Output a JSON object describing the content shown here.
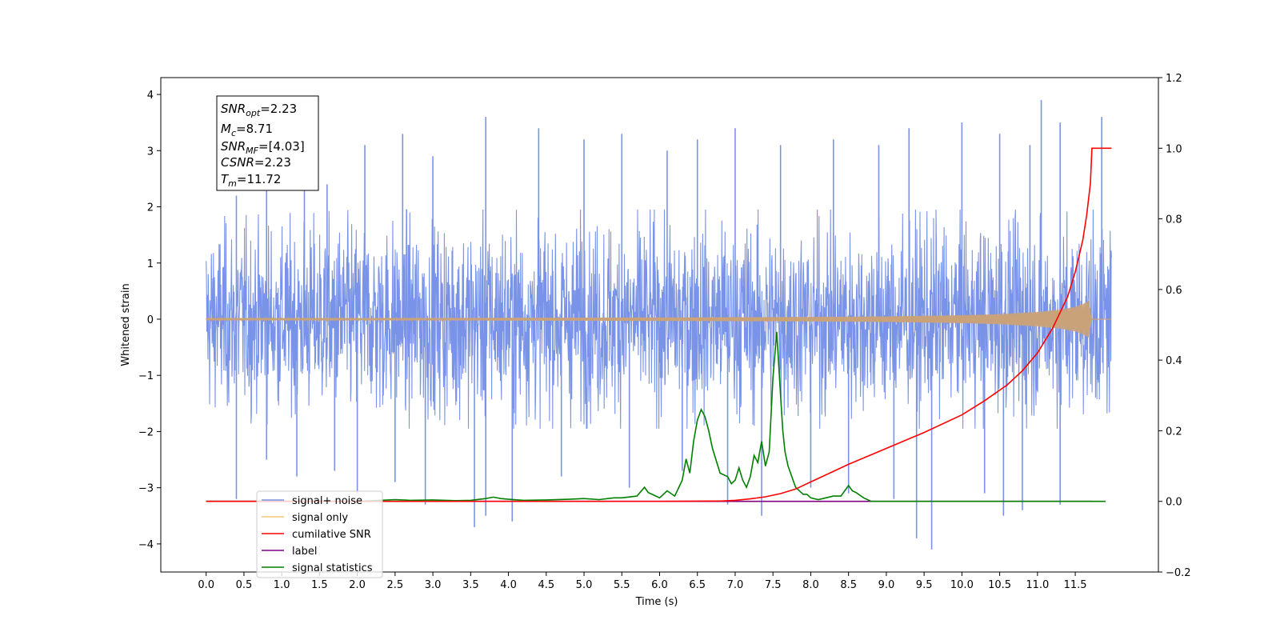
{
  "chart_data": {
    "type": "line",
    "xlabel": "Time (s)",
    "ylabel": "Whitened strain",
    "xlim": [
      -0.6,
      12.6
    ],
    "ylim": [
      -4.5,
      4.3
    ],
    "y2lim": [
      -0.2,
      1.2
    ],
    "x_ticks": [
      0.0,
      0.5,
      1.0,
      1.5,
      2.0,
      2.5,
      3.0,
      3.5,
      4.0,
      4.5,
      5.0,
      5.5,
      6.0,
      6.5,
      7.0,
      7.5,
      8.0,
      8.5,
      9.0,
      9.5,
      10.0,
      10.5,
      11.0,
      11.5
    ],
    "x_tick_labels": [
      "0.0",
      "0.5",
      "1.0",
      "1.5",
      "2.0",
      "2.5",
      "3.0",
      "3.5",
      "4.0",
      "4.5",
      "5.0",
      "5.5",
      "6.0",
      "6.5",
      "7.0",
      "7.5",
      "8.0",
      "8.5",
      "9.0",
      "9.5",
      "10.0",
      "10.5",
      "11.0",
      "11.5"
    ],
    "y_ticks": [
      -4,
      -3,
      -2,
      -1,
      0,
      1,
      2,
      3,
      4
    ],
    "y_tick_labels": [
      "−4",
      "−3",
      "−2",
      "−1",
      "0",
      "1",
      "2",
      "3",
      "4"
    ],
    "y2_ticks": [
      -0.2,
      0.0,
      0.2,
      0.4,
      0.6,
      0.8,
      1.0,
      1.2
    ],
    "y2_tick_labels": [
      "−0.2",
      "0.0",
      "0.2",
      "0.4",
      "0.6",
      "0.8",
      "1.0",
      "1.2"
    ],
    "legend_position": "lower-left",
    "grid": false,
    "info_box": {
      "snr_opt": {
        "symbol": "SNR",
        "subscript": "opt",
        "value": "=2.23"
      },
      "mc": {
        "symbol": "M",
        "subscript": "c",
        "value": "=8.71"
      },
      "snr_mf": {
        "symbol": "SNR",
        "subscript": "MF",
        "value": "=[4.03]"
      },
      "csnr": {
        "symbol": "CSNR",
        "subscript": "",
        "value": "=2.23"
      },
      "tm": {
        "symbol": "T",
        "subscript": "m",
        "value": "=11.72"
      }
    },
    "noise_envelope": {
      "x": [
        0.0,
        2.0,
        4.0,
        6.0,
        8.0,
        10.0,
        11.98
      ],
      "upper": [
        1.4,
        1.5,
        1.5,
        1.5,
        1.5,
        1.5,
        1.5
      ],
      "lower": [
        -1.4,
        -1.5,
        -1.5,
        -1.5,
        -1.5,
        -1.5,
        -1.5
      ]
    },
    "noise_spikes": {
      "up": [
        [
          0.4,
          2.2
        ],
        [
          0.8,
          2.6
        ],
        [
          1.3,
          2.8
        ],
        [
          1.6,
          2.4
        ],
        [
          2.1,
          3.1
        ],
        [
          2.6,
          3.3
        ],
        [
          3.0,
          2.9
        ],
        [
          3.7,
          3.6
        ],
        [
          4.4,
          3.4
        ],
        [
          5.0,
          3.2
        ],
        [
          5.5,
          3.3
        ],
        [
          6.1,
          3.0
        ],
        [
          6.5,
          3.2
        ],
        [
          7.0,
          3.4
        ],
        [
          7.6,
          3.1
        ],
        [
          8.3,
          3.2
        ],
        [
          8.9,
          3.1
        ],
        [
          9.3,
          3.4
        ],
        [
          10.0,
          3.5
        ],
        [
          10.5,
          3.3
        ],
        [
          10.9,
          3.1
        ],
        [
          11.05,
          3.9
        ],
        [
          11.3,
          3.5
        ],
        [
          11.85,
          3.6
        ]
      ],
      "down": [
        [
          0.4,
          -3.2
        ],
        [
          0.8,
          -2.5
        ],
        [
          1.2,
          -2.8
        ],
        [
          1.7,
          -2.7
        ],
        [
          2.0,
          -3.1
        ],
        [
          2.5,
          -2.9
        ],
        [
          2.9,
          -3.3
        ],
        [
          3.55,
          -3.7
        ],
        [
          3.7,
          -3.5
        ],
        [
          4.05,
          -3.6
        ],
        [
          4.7,
          -2.8
        ],
        [
          5.6,
          -3.0
        ],
        [
          6.3,
          -2.7
        ],
        [
          6.9,
          -3.3
        ],
        [
          7.35,
          -3.5
        ],
        [
          8.0,
          -3.0
        ],
        [
          8.5,
          -3.1
        ],
        [
          9.1,
          -3.2
        ],
        [
          9.4,
          -3.9
        ],
        [
          9.6,
          -4.1
        ],
        [
          10.3,
          -3.1
        ],
        [
          10.55,
          -3.5
        ],
        [
          10.8,
          -3.4
        ],
        [
          11.3,
          -3.3
        ]
      ]
    },
    "series": [
      {
        "name": "signal+ noise",
        "color": "#7993e8",
        "x": [],
        "y": []
      },
      {
        "name": "signal only",
        "color": "#f5c779",
        "envelope_x": [
          0.0,
          3.0,
          6.0,
          8.0,
          9.0,
          10.0,
          10.5,
          11.0,
          11.3,
          11.5,
          11.6,
          11.68,
          11.72,
          11.98
        ],
        "envelope_y": [
          0.02,
          0.02,
          0.03,
          0.04,
          0.05,
          0.07,
          0.09,
          0.13,
          0.17,
          0.22,
          0.27,
          0.33,
          0.0,
          0.0
        ]
      },
      {
        "name": "cumilative SNR",
        "color": "#ff0000",
        "axis": "right",
        "x": [
          0.0,
          6.0,
          6.8,
          7.0,
          7.2,
          7.4,
          7.6,
          7.8,
          8.0,
          8.2,
          8.5,
          9.0,
          9.5,
          10.0,
          10.3,
          10.6,
          10.8,
          11.0,
          11.2,
          11.4,
          11.5,
          11.6,
          11.65,
          11.7,
          11.72,
          11.98
        ],
        "y": [
          0.0,
          0.0,
          0.001,
          0.003,
          0.007,
          0.013,
          0.022,
          0.035,
          0.055,
          0.075,
          0.105,
          0.15,
          0.195,
          0.245,
          0.285,
          0.33,
          0.37,
          0.42,
          0.49,
          0.58,
          0.65,
          0.74,
          0.81,
          0.9,
          1.0,
          1.0
        ]
      },
      {
        "name": "label",
        "color": "#800080",
        "axis": "right",
        "x": [
          0.0,
          11.72
        ],
        "y": [
          0.0,
          0.0
        ]
      },
      {
        "name": "signal statistics",
        "color": "#008000",
        "axis": "right",
        "x": [
          0.0,
          2.0,
          2.3,
          2.5,
          2.7,
          3.0,
          3.3,
          3.5,
          3.7,
          3.8,
          3.9,
          4.0,
          4.2,
          4.5,
          4.8,
          5.0,
          5.2,
          5.4,
          5.5,
          5.7,
          5.8,
          5.85,
          5.9,
          6.0,
          6.1,
          6.2,
          6.3,
          6.35,
          6.4,
          6.45,
          6.5,
          6.55,
          6.6,
          6.65,
          6.7,
          6.8,
          6.9,
          6.95,
          7.0,
          7.05,
          7.1,
          7.15,
          7.2,
          7.25,
          7.3,
          7.35,
          7.4,
          7.45,
          7.5,
          7.55,
          7.6,
          7.63,
          7.66,
          7.7,
          7.8,
          7.9,
          7.95,
          8.0,
          8.1,
          8.2,
          8.3,
          8.4,
          8.5,
          8.55,
          8.6,
          8.7,
          8.8,
          8.9,
          9.0,
          9.5,
          10.0,
          11.0,
          11.9
        ],
        "y": [
          0.0,
          0.0,
          0.003,
          0.005,
          0.003,
          0.004,
          0.002,
          0.003,
          0.008,
          0.012,
          0.008,
          0.006,
          0.003,
          0.004,
          0.006,
          0.008,
          0.005,
          0.01,
          0.01,
          0.015,
          0.04,
          0.025,
          0.02,
          0.01,
          0.03,
          0.015,
          0.06,
          0.12,
          0.08,
          0.17,
          0.23,
          0.26,
          0.24,
          0.2,
          0.15,
          0.08,
          0.07,
          0.05,
          0.06,
          0.095,
          0.06,
          0.04,
          0.07,
          0.13,
          0.11,
          0.17,
          0.1,
          0.14,
          0.35,
          0.48,
          0.3,
          0.2,
          0.14,
          0.1,
          0.04,
          0.02,
          0.02,
          0.01,
          0.005,
          0.01,
          0.015,
          0.015,
          0.045,
          0.03,
          0.025,
          0.01,
          0.0,
          0.0,
          0.0,
          0.0,
          0.0,
          0.0,
          0.0
        ]
      }
    ],
    "legend_entries": [
      {
        "label": "signal+ noise",
        "color": "#7993e8"
      },
      {
        "label": "signal only",
        "color": "#f5c779"
      },
      {
        "label": "cumilative SNR",
        "color": "#ff0000"
      },
      {
        "label": "label",
        "color": "#800080"
      },
      {
        "label": "signal statistics",
        "color": "#008000"
      }
    ]
  }
}
